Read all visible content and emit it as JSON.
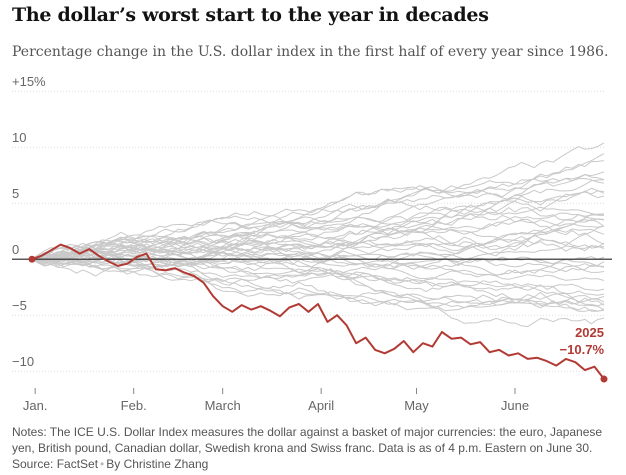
{
  "chart_data": {
    "type": "line",
    "title": "The dollar’s worst start to the year in decades",
    "subtitle": "Percentage change in the U.S. dollar index in the first half of every year since 1986.",
    "xlabel": "",
    "ylabel": "",
    "ylim": [
      -11.5,
      16
    ],
    "xlim": [
      0,
      180
    ],
    "y_ticks": [
      {
        "value": 15,
        "label": "+15%"
      },
      {
        "value": 10,
        "label": "10"
      },
      {
        "value": 5,
        "label": "5"
      },
      {
        "value": 0,
        "label": "0"
      },
      {
        "value": -5,
        "label": "−5"
      },
      {
        "value": -10,
        "label": "−10"
      }
    ],
    "x_ticks": [
      {
        "day": 1,
        "label": "Jan."
      },
      {
        "day": 32,
        "label": "Feb."
      },
      {
        "day": 60,
        "label": "March"
      },
      {
        "day": 91,
        "label": "April"
      },
      {
        "day": 121,
        "label": "May"
      },
      {
        "day": 152,
        "label": "June"
      }
    ],
    "highlight_series": {
      "name": "2025",
      "end_label": "−10.7%",
      "color": "#b23a34",
      "x": [
        0,
        3,
        6,
        9,
        12,
        15,
        18,
        21,
        24,
        27,
        30,
        33,
        36,
        39,
        42,
        45,
        48,
        51,
        54,
        57,
        60,
        63,
        66,
        69,
        72,
        75,
        78,
        81,
        84,
        87,
        90,
        93,
        96,
        99,
        102,
        105,
        108,
        111,
        114,
        117,
        120,
        123,
        126,
        129,
        132,
        135,
        138,
        141,
        144,
        147,
        150,
        153,
        156,
        159,
        162,
        165,
        168,
        171,
        174,
        177,
        180
      ],
      "values": [
        0,
        0.3,
        0.8,
        1.3,
        1.0,
        0.5,
        0.9,
        0.3,
        -0.2,
        -0.6,
        -0.4,
        0.2,
        0.5,
        -0.9,
        -1.0,
        -0.8,
        -1.2,
        -1.5,
        -2.1,
        -3.3,
        -4.2,
        -4.7,
        -4.1,
        -4.5,
        -4.2,
        -4.6,
        -5.1,
        -4.3,
        -4.0,
        -4.7,
        -4.0,
        -5.6,
        -5.0,
        -5.9,
        -7.5,
        -7.0,
        -8.1,
        -8.4,
        -8.0,
        -7.3,
        -8.3,
        -7.5,
        -7.8,
        -6.5,
        -7.1,
        -7.0,
        -7.6,
        -7.4,
        -8.3,
        -8.1,
        -8.6,
        -8.4,
        -8.9,
        -8.8,
        -9.1,
        -9.5,
        -8.9,
        -9.2,
        -9.9,
        -9.6,
        -10.7
      ]
    },
    "background_series_count": 39,
    "notes": "Notes: The ICE U.S. Dollar Index measures the dollar against a basket of major currencies: the euro, Japanese yen, British pound, Canadian dollar, Swedish krona and Swiss franc. Data is as of 4 p.m. Eastern on June 30.",
    "source": "Source: FactSet",
    "byline": "By Christine Zhang"
  },
  "colors": {
    "highlight": "#b23a34",
    "background_lines": "#c9c9c9",
    "zero_line": "#222222",
    "grid": "#dedede",
    "axis_text": "#666666"
  }
}
